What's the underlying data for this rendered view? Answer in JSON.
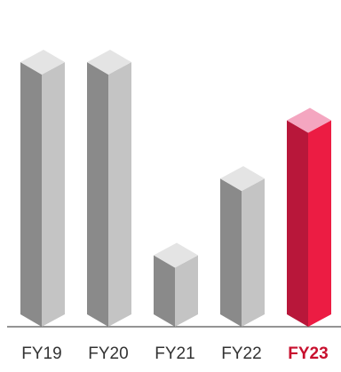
{
  "chart_data": {
    "type": "bar",
    "title": "",
    "xlabel": "",
    "ylabel": "",
    "categories": [
      "FY19",
      "FY20",
      "FY21",
      "FY22",
      "FY23"
    ],
    "values": [
      100,
      100,
      27,
      56,
      78
    ],
    "ylim": [
      0,
      100
    ],
    "grid": false,
    "legend": "none",
    "highlight": {
      "category": "FY23",
      "color": "#e31b3f",
      "label_color": "#c8102e",
      "label_bold": true
    },
    "colors": {
      "bar_front": "#c4c4c4",
      "bar_side": "#8a8a8a",
      "bar_top": "#e4e4e4",
      "highlight_front": "#ec1c43",
      "highlight_side": "#b8173a",
      "highlight_top": "#f4a6c0",
      "baseline": "#555555",
      "tick_label": "#333333"
    }
  }
}
